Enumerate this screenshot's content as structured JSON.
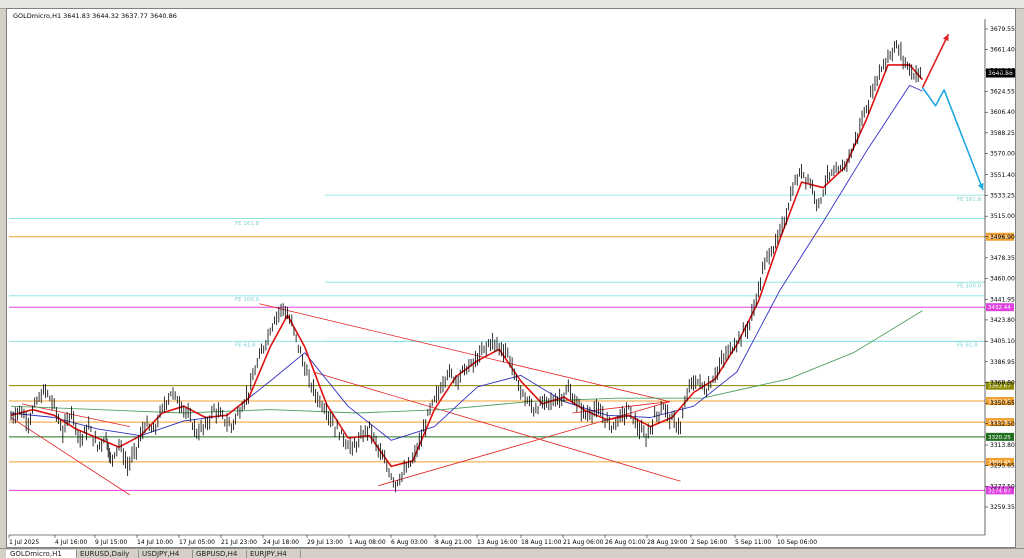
{
  "window": {
    "title": "GOLDmicro,H1  3641.83 3644.32 3637.77 3640.86"
  },
  "tabs": [
    {
      "label": "GOLDmicro,H1",
      "active": true
    },
    {
      "label": "EURUSD,Daily",
      "active": false
    },
    {
      "label": "USDJPY,H4",
      "active": false
    },
    {
      "label": "GBPUSD,H4",
      "active": false
    },
    {
      "label": "EURJPY,H4",
      "active": false
    }
  ],
  "chart_data": {
    "type": "candlestick",
    "symbol": "GOLDmicro",
    "timeframe": "H1",
    "ohlc_header": {
      "open": 3641.83,
      "high": 3644.32,
      "low": 3637.77,
      "close": 3640.86
    },
    "current_price": "3640.86",
    "y_ticks": [
      "3679.55",
      "3661.40",
      "3642.86",
      "3624.55",
      "3606.40",
      "3588.25",
      "3570.00",
      "3551.40",
      "3533.25",
      "3515.00",
      "3496.90",
      "3478.35",
      "3460.00",
      "3441.95",
      "3423.80",
      "3405.10",
      "3386.95",
      "3368.80",
      "3350.65",
      "3332.50",
      "3313.80",
      "3295.65",
      "3277.50",
      "3259.35"
    ],
    "x_ticks": [
      "1 Jul 2025",
      "4 Jul 16:00",
      "9 Jul 15:00",
      "14 Jul 10:00",
      "17 Jul 05:00",
      "21 Jul 23:00",
      "24 Jul 18:00",
      "29 Jul 13:00",
      "1 Aug 08:00",
      "6 Aug 03:00",
      "8 Aug 21:00",
      "13 Aug 16:00",
      "18 Aug 11:00",
      "21 Aug 06:00",
      "26 Aug 01:00",
      "28 Aug 19:00",
      "2 Sep 16:00",
      "5 Sep 11:00",
      "10 Sep 06:00"
    ],
    "horizontal_levels": [
      {
        "price": 3496.9,
        "label": "3494.98",
        "color": "#f0a030"
      },
      {
        "price": 3435.0,
        "label": "3432.44",
        "color": "#e040e0"
      },
      {
        "price": 3366.0,
        "label": "3363.67",
        "color": "#8a8a00"
      },
      {
        "price": 3352.5,
        "label": "3350.01",
        "color": "#f0a030"
      },
      {
        "price": 3334.0,
        "label": "3332.60",
        "color": "#f0a030"
      },
      {
        "price": 3321.0,
        "label": "3320.25",
        "color": "#207020"
      },
      {
        "price": 3299.0,
        "label": "3300.45",
        "color": "#f0a030"
      },
      {
        "price": 3274.0,
        "label": "3274.87",
        "color": "#e040e0"
      }
    ],
    "fib_labels": [
      {
        "text": "FE 161.8",
        "price": 3530.0
      },
      {
        "text": "FE 161.8",
        "price": 3509.0
      },
      {
        "text": "FE 100.0",
        "price": 3454.0
      },
      {
        "text": "FE 100.0",
        "price": 3442.0
      },
      {
        "text": "FE 61.8",
        "price": 3402.0
      },
      {
        "text": "FE 61.8",
        "price": 3402.0
      }
    ],
    "fib_lines": [
      3533.5,
      3513.0,
      3457.0,
      3445.0,
      3405.0,
      3405.0
    ],
    "price_path": [
      [
        0,
        3338
      ],
      [
        4,
        3345
      ],
      [
        8,
        3335
      ],
      [
        12,
        3352
      ],
      [
        16,
        3362
      ],
      [
        20,
        3348
      ],
      [
        24,
        3325
      ],
      [
        28,
        3345
      ],
      [
        32,
        3318
      ],
      [
        36,
        3330
      ],
      [
        40,
        3312
      ],
      [
        44,
        3322
      ],
      [
        46,
        3300
      ],
      [
        50,
        3315
      ],
      [
        54,
        3295
      ],
      [
        58,
        3310
      ],
      [
        62,
        3332
      ],
      [
        66,
        3325
      ],
      [
        70,
        3345
      ],
      [
        74,
        3360
      ],
      [
        78,
        3352
      ],
      [
        82,
        3340
      ],
      [
        86,
        3325
      ],
      [
        90,
        3330
      ],
      [
        94,
        3345
      ],
      [
        98,
        3338
      ],
      [
        102,
        3330
      ],
      [
        106,
        3345
      ],
      [
        110,
        3360
      ],
      [
        114,
        3385
      ],
      [
        118,
        3405
      ],
      [
        122,
        3425
      ],
      [
        126,
        3435
      ],
      [
        130,
        3420
      ],
      [
        134,
        3395
      ],
      [
        138,
        3370
      ],
      [
        142,
        3355
      ],
      [
        146,
        3345
      ],
      [
        150,
        3330
      ],
      [
        154,
        3320
      ],
      [
        158,
        3310
      ],
      [
        162,
        3320
      ],
      [
        166,
        3330
      ],
      [
        170,
        3310
      ],
      [
        174,
        3295
      ],
      [
        178,
        3280
      ],
      [
        182,
        3290
      ],
      [
        186,
        3300
      ],
      [
        190,
        3320
      ],
      [
        194,
        3345
      ],
      [
        198,
        3360
      ],
      [
        202,
        3378
      ],
      [
        206,
        3372
      ],
      [
        210,
        3380
      ],
      [
        214,
        3385
      ],
      [
        218,
        3395
      ],
      [
        222,
        3405
      ],
      [
        226,
        3400
      ],
      [
        230,
        3395
      ],
      [
        234,
        3370
      ],
      [
        238,
        3355
      ],
      [
        242,
        3345
      ],
      [
        246,
        3350
      ],
      [
        250,
        3352
      ],
      [
        254,
        3355
      ],
      [
        258,
        3362
      ],
      [
        262,
        3350
      ],
      [
        266,
        3340
      ],
      [
        270,
        3345
      ],
      [
        274,
        3340
      ],
      [
        278,
        3330
      ],
      [
        282,
        3338
      ],
      [
        286,
        3345
      ],
      [
        290,
        3330
      ],
      [
        294,
        3320
      ],
      [
        298,
        3338
      ],
      [
        302,
        3348
      ],
      [
        306,
        3335
      ],
      [
        310,
        3330
      ],
      [
        314,
        3366
      ],
      [
        318,
        3370
      ],
      [
        322,
        3362
      ],
      [
        326,
        3376
      ],
      [
        330,
        3390
      ],
      [
        334,
        3400
      ],
      [
        338,
        3410
      ],
      [
        342,
        3420
      ],
      [
        346,
        3450
      ],
      [
        350,
        3480
      ],
      [
        354,
        3490
      ],
      [
        358,
        3510
      ],
      [
        362,
        3540
      ],
      [
        366,
        3555
      ],
      [
        370,
        3545
      ],
      [
        374,
        3525
      ],
      [
        378,
        3550
      ],
      [
        382,
        3552
      ],
      [
        386,
        3560
      ],
      [
        390,
        3575
      ],
      [
        394,
        3600
      ],
      [
        398,
        3620
      ],
      [
        402,
        3642
      ],
      [
        406,
        3655
      ],
      [
        410,
        3665
      ],
      [
        414,
        3650
      ],
      [
        418,
        3640
      ],
      [
        422,
        3640
      ]
    ],
    "ma_fast": [
      [
        0,
        3340
      ],
      [
        10,
        3345
      ],
      [
        20,
        3340
      ],
      [
        30,
        3328
      ],
      [
        40,
        3320
      ],
      [
        50,
        3312
      ],
      [
        60,
        3322
      ],
      [
        70,
        3342
      ],
      [
        80,
        3348
      ],
      [
        90,
        3338
      ],
      [
        100,
        3340
      ],
      [
        110,
        3355
      ],
      [
        120,
        3400
      ],
      [
        128,
        3428
      ],
      [
        136,
        3400
      ],
      [
        146,
        3350
      ],
      [
        156,
        3320
      ],
      [
        166,
        3322
      ],
      [
        176,
        3295
      ],
      [
        186,
        3300
      ],
      [
        196,
        3345
      ],
      [
        206,
        3374
      ],
      [
        216,
        3388
      ],
      [
        226,
        3398
      ],
      [
        236,
        3370
      ],
      [
        246,
        3350
      ],
      [
        256,
        3356
      ],
      [
        266,
        3344
      ],
      [
        276,
        3336
      ],
      [
        286,
        3340
      ],
      [
        296,
        3330
      ],
      [
        306,
        3338
      ],
      [
        316,
        3360
      ],
      [
        326,
        3372
      ],
      [
        336,
        3402
      ],
      [
        346,
        3440
      ],
      [
        356,
        3495
      ],
      [
        366,
        3545
      ],
      [
        376,
        3540
      ],
      [
        386,
        3558
      ],
      [
        396,
        3600
      ],
      [
        406,
        3648
      ],
      [
        416,
        3648
      ],
      [
        422,
        3635
      ]
    ],
    "ma_slow": [
      [
        0,
        3342
      ],
      [
        20,
        3338
      ],
      [
        40,
        3328
      ],
      [
        60,
        3322
      ],
      [
        80,
        3335
      ],
      [
        100,
        3340
      ],
      [
        120,
        3370
      ],
      [
        136,
        3395
      ],
      [
        156,
        3348
      ],
      [
        176,
        3318
      ],
      [
        196,
        3330
      ],
      [
        216,
        3365
      ],
      [
        236,
        3375
      ],
      [
        256,
        3352
      ],
      [
        276,
        3340
      ],
      [
        296,
        3338
      ],
      [
        316,
        3348
      ],
      [
        336,
        3378
      ],
      [
        356,
        3450
      ],
      [
        376,
        3510
      ],
      [
        396,
        3572
      ],
      [
        416,
        3630
      ],
      [
        422,
        3625
      ]
    ],
    "ma_long": [
      [
        0,
        3348
      ],
      [
        40,
        3345
      ],
      [
        80,
        3342
      ],
      [
        120,
        3345
      ],
      [
        160,
        3342
      ],
      [
        200,
        3345
      ],
      [
        240,
        3352
      ],
      [
        280,
        3355
      ],
      [
        320,
        3355
      ],
      [
        360,
        3372
      ],
      [
        390,
        3395
      ],
      [
        410,
        3418
      ],
      [
        422,
        3432
      ]
    ],
    "trendlines": [
      {
        "from": [
          0,
          3338
        ],
        "to": [
          55,
          3270
        ],
        "color": "#e02020"
      },
      {
        "from": [
          5,
          3350
        ],
        "to": [
          55,
          3330
        ],
        "color": "#e02020"
      },
      {
        "from": [
          115,
          3438
        ],
        "to": [
          305,
          3352
        ],
        "color": "#e02020"
      },
      {
        "from": [
          170,
          3278
        ],
        "to": [
          305,
          3352
        ],
        "color": "#e02020"
      },
      {
        "from": [
          140,
          3378
        ],
        "to": [
          310,
          3282
        ],
        "color": "#e02020"
      },
      {
        "from": [
          260,
          3342
        ],
        "to": [
          305,
          3352
        ],
        "color": "#e02020"
      }
    ],
    "projection_red": [
      [
        422,
        3628
      ],
      [
        434,
        3675
      ]
    ],
    "projection_blue": [
      [
        422,
        3628
      ],
      [
        428,
        3612
      ],
      [
        432,
        3626
      ],
      [
        450,
        3538
      ]
    ]
  }
}
